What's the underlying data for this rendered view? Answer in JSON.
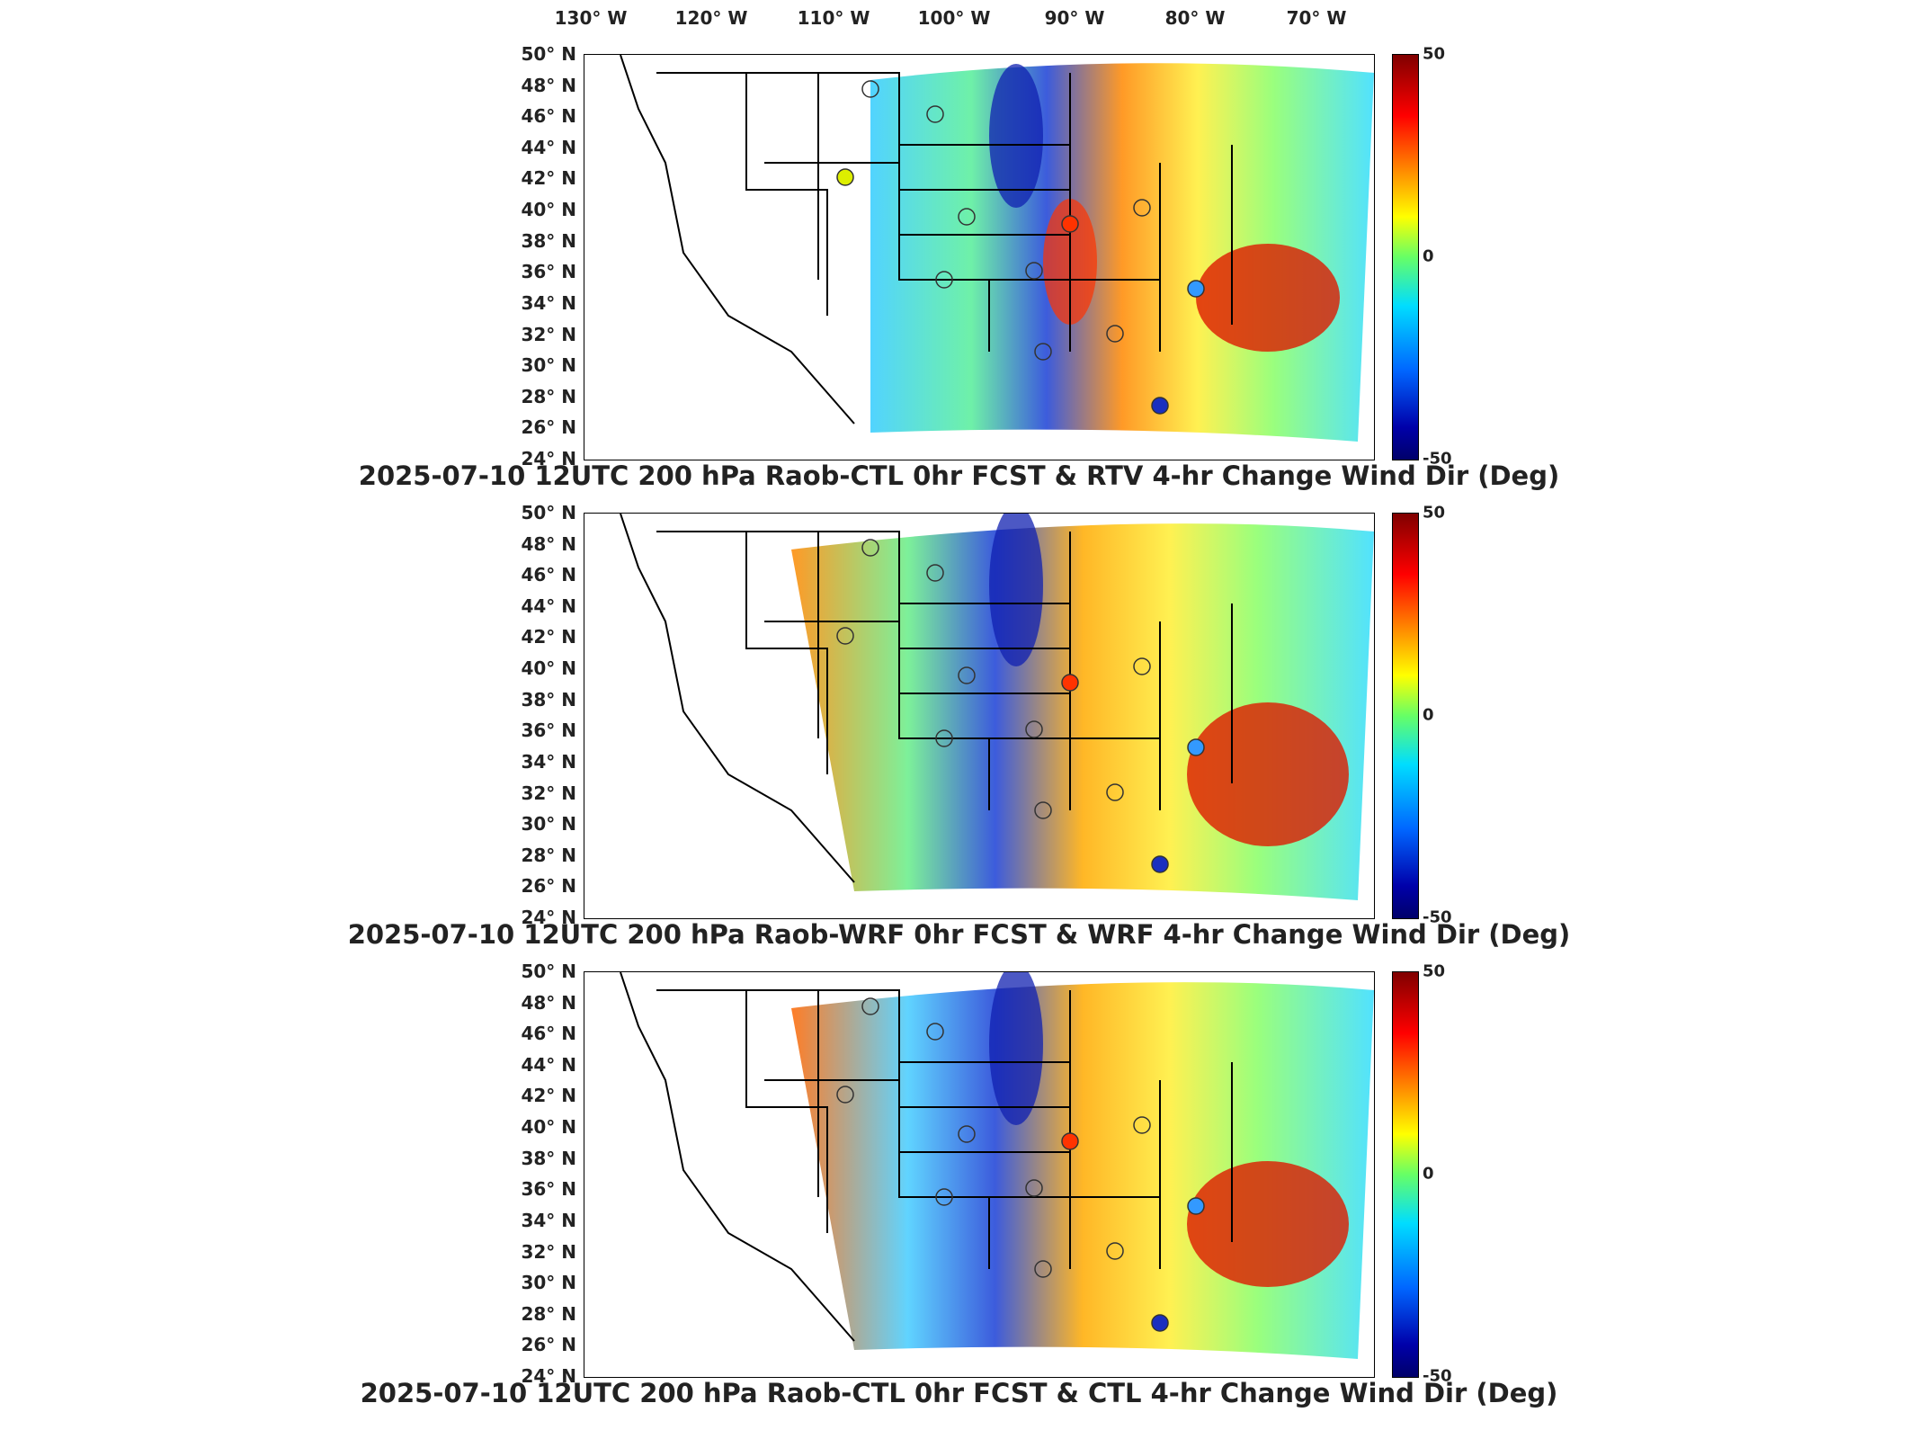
{
  "lon_labels": [
    "130° W",
    "120° W",
    "110° W",
    "100° W",
    "90° W",
    "80° W",
    "70° W"
  ],
  "lat_labels": [
    "50° N",
    "48° N",
    "46° N",
    "44° N",
    "42° N",
    "40° N",
    "38° N",
    "36° N",
    "34° N",
    "32° N",
    "30° N",
    "28° N",
    "26° N",
    "24° N"
  ],
  "colorbar": {
    "max": "50",
    "mid": "0",
    "min": "-50"
  },
  "colors": {
    "high": "#800000",
    "zero": "#66ff66",
    "low": "#00006a"
  },
  "panels": [
    {
      "title": "2025-07-10 12UTC 200 hPa Raob-CTL 0hr FCST & RTV 4-hr Change Wind Dir (Deg)"
    },
    {
      "title": "2025-07-10 12UTC 200 hPa Raob-WRF 0hr FCST & WRF 4-hr Change Wind Dir (Deg)"
    },
    {
      "title": "2025-07-10 12UTC 200 hPa Raob-CTL 0hr FCST & CTL 4-hr Change Wind Dir (Deg)"
    }
  ]
}
